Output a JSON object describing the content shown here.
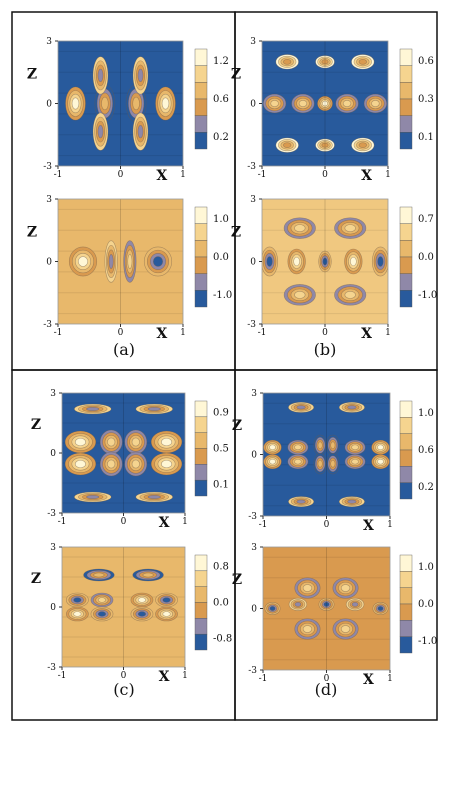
{
  "panels": [
    {
      "caption": "(a)",
      "plots": [
        {
          "z_ticks": [
            "3",
            "0",
            "-3"
          ],
          "x_ticks": [
            "-1",
            "0",
            "1"
          ],
          "xlabel": "X",
          "zlabel": "Z",
          "colorbar_labels": [
            "1.2",
            "0.6",
            "0.2"
          ],
          "palette": [
            "#fff7d6",
            "#f5d48f",
            "#e8b86b",
            "#d99a4f",
            "#8f88a8",
            "#285a9c"
          ],
          "background": "#285a9c",
          "features": [
            {
              "x": -0.72,
              "z": 0.0,
              "rx": 0.16,
              "rz": 0.8,
              "level": 0
            },
            {
              "x": -0.25,
              "z": 0.0,
              "rx": 0.16,
              "rz": 0.9,
              "level": 2
            },
            {
              "x": 0.25,
              "z": 0.0,
              "rx": 0.16,
              "rz": 0.9,
              "level": 2
            },
            {
              "x": 0.72,
              "z": 0.0,
              "rx": 0.16,
              "rz": 0.8,
              "level": 0
            },
            {
              "x": -0.32,
              "z": 1.35,
              "rx": 0.12,
              "rz": 0.9,
              "level": 4
            },
            {
              "x": 0.32,
              "z": 1.35,
              "rx": 0.12,
              "rz": 0.9,
              "level": 4
            },
            {
              "x": -0.32,
              "z": -1.35,
              "rx": 0.12,
              "rz": 0.9,
              "level": 4
            },
            {
              "x": 0.32,
              "z": -1.35,
              "rx": 0.12,
              "rz": 0.9,
              "level": 4
            }
          ]
        },
        {
          "z_ticks": [
            "3",
            "0",
            "-3"
          ],
          "x_ticks": [
            "-1",
            "0",
            "1"
          ],
          "xlabel": "X",
          "zlabel": "Z",
          "colorbar_labels": [
            "1.0",
            "0.0",
            "-1.0"
          ],
          "palette": [
            "#fff7d6",
            "#f5d48f",
            "#e8b86b",
            "#d99a4f",
            "#8f88a8",
            "#285a9c"
          ],
          "background": "#e8b86b",
          "features": [
            {
              "x": -0.6,
              "z": 0.0,
              "rx": 0.22,
              "rz": 0.7,
              "level": 0
            },
            {
              "x": 0.6,
              "z": 0.0,
              "rx": 0.22,
              "rz": 0.7,
              "level": 5
            },
            {
              "x": -0.15,
              "z": 0.0,
              "rx": 0.1,
              "rz": 1.0,
              "level": 4
            },
            {
              "x": 0.15,
              "z": 0.0,
              "rx": 0.1,
              "rz": 1.0,
              "level": 1
            }
          ]
        }
      ]
    },
    {
      "caption": "(b)",
      "plots": [
        {
          "z_ticks": [
            "3",
            "0",
            "-3"
          ],
          "x_ticks": [
            "-1",
            "0",
            "1"
          ],
          "xlabel": "X",
          "zlabel": "Z",
          "colorbar_labels": [
            "0.6",
            "0.3",
            "0.1"
          ],
          "palette": [
            "#fff7d6",
            "#f5d48f",
            "#e8b86b",
            "#d99a4f",
            "#8f88a8",
            "#285a9c"
          ],
          "background": "#285a9c",
          "features": [
            {
              "x": -0.8,
              "z": 0.0,
              "rx": 0.18,
              "rz": 0.45,
              "level": 1
            },
            {
              "x": -0.35,
              "z": 0.0,
              "rx": 0.18,
              "rz": 0.45,
              "level": 1
            },
            {
              "x": 0.0,
              "z": 0.0,
              "rx": 0.12,
              "rz": 0.35,
              "level": 0
            },
            {
              "x": 0.35,
              "z": 0.0,
              "rx": 0.18,
              "rz": 0.45,
              "level": 1
            },
            {
              "x": 0.8,
              "z": 0.0,
              "rx": 0.18,
              "rz": 0.45,
              "level": 1
            },
            {
              "x": -0.6,
              "z": 2.0,
              "rx": 0.18,
              "rz": 0.35,
              "level": 3
            },
            {
              "x": 0.6,
              "z": 2.0,
              "rx": 0.18,
              "rz": 0.35,
              "level": 3
            },
            {
              "x": 0.0,
              "z": 2.0,
              "rx": 0.15,
              "rz": 0.3,
              "level": 3
            },
            {
              "x": -0.6,
              "z": -2.0,
              "rx": 0.18,
              "rz": 0.35,
              "level": 3
            },
            {
              "x": 0.6,
              "z": -2.0,
              "rx": 0.18,
              "rz": 0.35,
              "level": 3
            },
            {
              "x": 0.0,
              "z": -2.0,
              "rx": 0.15,
              "rz": 0.3,
              "level": 3
            }
          ]
        },
        {
          "z_ticks": [
            "3",
            "0",
            "-3"
          ],
          "x_ticks": [
            "-1",
            "0",
            "1"
          ],
          "xlabel": "X",
          "zlabel": "Z",
          "colorbar_labels": [
            "0.7",
            "0.0",
            "-1.0"
          ],
          "palette": [
            "#fff7d6",
            "#f5d48f",
            "#e8b86b",
            "#d99a4f",
            "#8f88a8",
            "#285a9c"
          ],
          "background": "#f0c880",
          "features": [
            {
              "x": -0.88,
              "z": 0.0,
              "rx": 0.13,
              "rz": 0.7,
              "level": 5
            },
            {
              "x": -0.45,
              "z": 0.0,
              "rx": 0.14,
              "rz": 0.6,
              "level": 0
            },
            {
              "x": 0.0,
              "z": 0.0,
              "rx": 0.1,
              "rz": 0.5,
              "level": 5
            },
            {
              "x": 0.45,
              "z": 0.0,
              "rx": 0.14,
              "rz": 0.6,
              "level": 0
            },
            {
              "x": 0.88,
              "z": 0.0,
              "rx": 0.13,
              "rz": 0.7,
              "level": 5
            },
            {
              "x": -0.4,
              "z": 1.6,
              "rx": 0.25,
              "rz": 0.5,
              "level": 1
            },
            {
              "x": 0.4,
              "z": 1.6,
              "rx": 0.25,
              "rz": 0.5,
              "level": 1
            },
            {
              "x": -0.4,
              "z": -1.6,
              "rx": 0.25,
              "rz": 0.5,
              "level": 1
            },
            {
              "x": 0.4,
              "z": -1.6,
              "rx": 0.25,
              "rz": 0.5,
              "level": 1
            }
          ]
        }
      ]
    },
    {
      "caption": "(c)",
      "plots": [
        {
          "z_ticks": [
            "3",
            "0",
            "-3"
          ],
          "x_ticks": [
            "-1",
            "0",
            "1"
          ],
          "xlabel": "X",
          "zlabel": "Z",
          "colorbar_labels": [
            "0.9",
            "0.5",
            "0.1"
          ],
          "palette": [
            "#fff7d6",
            "#f5d48f",
            "#e8b86b",
            "#d99a4f",
            "#8f88a8",
            "#285a9c"
          ],
          "background": "#285a9c",
          "features": [
            {
              "x": -0.7,
              "z": 0.55,
              "rx": 0.25,
              "rz": 0.55,
              "level": 0
            },
            {
              "x": -0.2,
              "z": 0.55,
              "rx": 0.18,
              "rz": 0.6,
              "level": 1
            },
            {
              "x": 0.2,
              "z": 0.55,
              "rx": 0.18,
              "rz": 0.6,
              "level": 1
            },
            {
              "x": 0.7,
              "z": 0.55,
              "rx": 0.25,
              "rz": 0.55,
              "level": 0
            },
            {
              "x": -0.7,
              "z": -0.55,
              "rx": 0.25,
              "rz": 0.55,
              "level": 0
            },
            {
              "x": -0.2,
              "z": -0.55,
              "rx": 0.18,
              "rz": 0.6,
              "level": 1
            },
            {
              "x": 0.2,
              "z": -0.55,
              "rx": 0.18,
              "rz": 0.6,
              "level": 1
            },
            {
              "x": 0.7,
              "z": -0.55,
              "rx": 0.25,
              "rz": 0.55,
              "level": 0
            },
            {
              "x": -0.5,
              "z": 2.2,
              "rx": 0.3,
              "rz": 0.25,
              "level": 4
            },
            {
              "x": 0.5,
              "z": 2.2,
              "rx": 0.3,
              "rz": 0.25,
              "level": 4
            },
            {
              "x": -0.5,
              "z": -2.2,
              "rx": 0.3,
              "rz": 0.25,
              "level": 4
            },
            {
              "x": 0.5,
              "z": -2.2,
              "rx": 0.3,
              "rz": 0.25,
              "level": 4
            }
          ]
        },
        {
          "z_ticks": [
            "3",
            "0",
            "-3"
          ],
          "x_ticks": [
            "-1",
            "0",
            "1"
          ],
          "xlabel": "X",
          "zlabel": "Z",
          "colorbar_labels": [
            "0.8",
            "0.0",
            "-0.8"
          ],
          "palette": [
            "#fff7d6",
            "#f5d48f",
            "#e8b86b",
            "#d99a4f",
            "#8f88a8",
            "#285a9c"
          ],
          "background": "#e8b86b",
          "features": [
            {
              "x": -0.75,
              "z": 0.35,
              "rx": 0.18,
              "rz": 0.35,
              "level": 5
            },
            {
              "x": -0.35,
              "z": 0.35,
              "rx": 0.18,
              "rz": 0.35,
              "level": 1
            },
            {
              "x": 0.3,
              "z": 0.35,
              "rx": 0.18,
              "rz": 0.35,
              "level": 0
            },
            {
              "x": 0.7,
              "z": 0.35,
              "rx": 0.18,
              "rz": 0.35,
              "level": 5
            },
            {
              "x": -0.75,
              "z": -0.35,
              "rx": 0.18,
              "rz": 0.35,
              "level": 0
            },
            {
              "x": -0.35,
              "z": -0.35,
              "rx": 0.18,
              "rz": 0.35,
              "level": 5
            },
            {
              "x": 0.3,
              "z": -0.35,
              "rx": 0.18,
              "rz": 0.35,
              "level": 5
            },
            {
              "x": 0.7,
              "z": -0.35,
              "rx": 0.18,
              "rz": 0.35,
              "level": 0
            },
            {
              "x": -0.4,
              "z": 1.6,
              "rx": 0.25,
              "rz": 0.3,
              "level": 2
            },
            {
              "x": 0.4,
              "z": 1.6,
              "rx": 0.25,
              "rz": 0.3,
              "level": 2
            }
          ]
        }
      ]
    },
    {
      "caption": "(d)",
      "plots": [
        {
          "z_ticks": [
            "3",
            "0",
            "-3"
          ],
          "x_ticks": [
            "-1",
            "0",
            "1"
          ],
          "xlabel": "X",
          "zlabel": "Z",
          "colorbar_labels": [
            "1.0",
            "0.6",
            "0.2"
          ],
          "palette": [
            "#fff7d6",
            "#f5d48f",
            "#e8b86b",
            "#d99a4f",
            "#8f88a8",
            "#285a9c"
          ],
          "background": "#285a9c",
          "features": [
            {
              "x": -0.85,
              "z": 0.35,
              "rx": 0.14,
              "rz": 0.35,
              "level": 0
            },
            {
              "x": -0.45,
              "z": 0.35,
              "rx": 0.16,
              "rz": 0.35,
              "level": 1
            },
            {
              "x": -0.1,
              "z": 0.45,
              "rx": 0.1,
              "rz": 0.5,
              "level": 2
            },
            {
              "x": 0.1,
              "z": 0.45,
              "rx": 0.1,
              "rz": 0.5,
              "level": 2
            },
            {
              "x": 0.45,
              "z": 0.35,
              "rx": 0.16,
              "rz": 0.35,
              "level": 1
            },
            {
              "x": 0.85,
              "z": 0.35,
              "rx": 0.14,
              "rz": 0.35,
              "level": 0
            },
            {
              "x": -0.85,
              "z": -0.35,
              "rx": 0.14,
              "rz": 0.35,
              "level": 0
            },
            {
              "x": -0.45,
              "z": -0.35,
              "rx": 0.16,
              "rz": 0.35,
              "level": 1
            },
            {
              "x": -0.1,
              "z": -0.45,
              "rx": 0.1,
              "rz": 0.5,
              "level": 2
            },
            {
              "x": 0.1,
              "z": -0.45,
              "rx": 0.1,
              "rz": 0.5,
              "level": 2
            },
            {
              "x": 0.45,
              "z": -0.35,
              "rx": 0.16,
              "rz": 0.35,
              "level": 1
            },
            {
              "x": 0.85,
              "z": -0.35,
              "rx": 0.14,
              "rz": 0.35,
              "level": 0
            },
            {
              "x": -0.4,
              "z": 2.3,
              "rx": 0.2,
              "rz": 0.25,
              "level": 4
            },
            {
              "x": 0.4,
              "z": 2.3,
              "rx": 0.2,
              "rz": 0.25,
              "level": 4
            },
            {
              "x": -0.4,
              "z": -2.3,
              "rx": 0.2,
              "rz": 0.25,
              "level": 4
            },
            {
              "x": 0.4,
              "z": -2.3,
              "rx": 0.2,
              "rz": 0.25,
              "level": 4
            }
          ]
        },
        {
          "z_ticks": [
            "3",
            "0",
            "-3"
          ],
          "x_ticks": [
            "-1",
            "0",
            "1"
          ],
          "xlabel": "X",
          "zlabel": "Z",
          "colorbar_labels": [
            "1.0",
            "0.0",
            "-1.0"
          ],
          "palette": [
            "#fff7d6",
            "#f5d48f",
            "#e8b86b",
            "#d99a4f",
            "#8f88a8",
            "#285a9c"
          ],
          "background": "#d99a4f",
          "features": [
            {
              "x": -0.85,
              "z": 0.0,
              "rx": 0.12,
              "rz": 0.3,
              "level": 5
            },
            {
              "x": -0.45,
              "z": 0.2,
              "rx": 0.14,
              "rz": 0.3,
              "level": 4
            },
            {
              "x": 0.0,
              "z": 0.2,
              "rx": 0.12,
              "rz": 0.3,
              "level": 5
            },
            {
              "x": 0.45,
              "z": 0.2,
              "rx": 0.14,
              "rz": 0.3,
              "level": 4
            },
            {
              "x": 0.85,
              "z": 0.0,
              "rx": 0.12,
              "rz": 0.3,
              "level": 5
            },
            {
              "x": -0.3,
              "z": 1.0,
              "rx": 0.2,
              "rz": 0.5,
              "level": 1
            },
            {
              "x": 0.3,
              "z": 1.0,
              "rx": 0.2,
              "rz": 0.5,
              "level": 1
            },
            {
              "x": -0.3,
              "z": -1.0,
              "rx": 0.2,
              "rz": 0.5,
              "level": 1
            },
            {
              "x": 0.3,
              "z": -1.0,
              "rx": 0.2,
              "rz": 0.5,
              "level": 1
            }
          ]
        }
      ]
    }
  ]
}
